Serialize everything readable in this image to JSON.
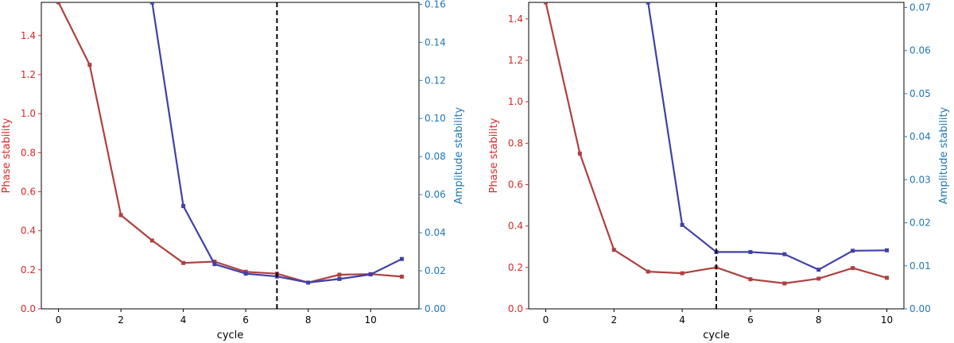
{
  "colors": {
    "phase": "#b04040",
    "amplitude": "#4040a8",
    "left_axis_text": "#d62728",
    "right_axis_text": "#1f77b4",
    "frame": "#000000",
    "threshold": "#000000"
  },
  "chart_data": [
    {
      "type": "line",
      "xlabel": "cycle",
      "ylabel_left": "Phase stability",
      "ylabel_right": "Amplitude stability",
      "xlim": [
        -0.55,
        11.55
      ],
      "ylim_left": [
        0,
        1.57
      ],
      "ylim_right": [
        0,
        0.161
      ],
      "xticks": [
        "0",
        "2",
        "4",
        "6",
        "8",
        "10"
      ],
      "xtick_values": [
        0,
        2,
        4,
        6,
        8,
        10
      ],
      "yticks_left": [
        "0.0",
        "0.2",
        "0.4",
        "0.6",
        "0.8",
        "1.0",
        "1.2",
        "1.4"
      ],
      "ytick_left_values": [
        0,
        0.2,
        0.4,
        0.6,
        0.8,
        1.0,
        1.2,
        1.4
      ],
      "yticks_right": [
        "0.00",
        "0.02",
        "0.04",
        "0.06",
        "0.08",
        "0.10",
        "0.12",
        "0.14",
        "0.16"
      ],
      "ytick_right_values": [
        0,
        0.02,
        0.04,
        0.06,
        0.08,
        0.1,
        0.12,
        0.14,
        0.16
      ],
      "vline_x": 7,
      "grid": false,
      "series": [
        {
          "axis": "left",
          "color": "#b04040",
          "x": [
            0,
            1,
            2,
            3,
            4,
            5,
            6,
            7,
            8,
            9,
            10,
            11
          ],
          "y": [
            1.57,
            1.25,
            0.48,
            0.35,
            0.235,
            0.242,
            0.19,
            0.18,
            0.135,
            0.175,
            0.178,
            0.165
          ],
          "marker_x": [
            0,
            1,
            2,
            3,
            4,
            5,
            6,
            7,
            9,
            10,
            11
          ]
        },
        {
          "axis": "right",
          "color": "#4040a8",
          "x": [
            3,
            4,
            5,
            6,
            7,
            8,
            9,
            10,
            11
          ],
          "y": [
            0.161,
            0.054,
            0.0235,
            0.0185,
            0.017,
            0.0138,
            0.0157,
            0.0181,
            0.0262
          ],
          "marker_x": [
            3,
            4,
            5,
            6,
            7,
            8,
            9,
            10,
            11
          ]
        }
      ]
    },
    {
      "type": "line",
      "xlabel": "cycle",
      "ylabel_left": "Phase stability",
      "ylabel_right": "Amplitude stability",
      "xlim": [
        -0.5,
        10.5
      ],
      "ylim_left": [
        0,
        1.48
      ],
      "ylim_right": [
        0,
        0.0712
      ],
      "xticks": [
        "0",
        "2",
        "4",
        "6",
        "8",
        "10"
      ],
      "xtick_values": [
        0,
        2,
        4,
        6,
        8,
        10
      ],
      "yticks_left": [
        "0.0",
        "0.2",
        "0.4",
        "0.6",
        "0.8",
        "1.0",
        "1.2",
        "1.4"
      ],
      "ytick_left_values": [
        0,
        0.2,
        0.4,
        0.6,
        0.8,
        1.0,
        1.2,
        1.4
      ],
      "yticks_right": [
        "0.00",
        "0.01",
        "0.02",
        "0.03",
        "0.04",
        "0.05",
        "0.06",
        "0.07"
      ],
      "ytick_right_values": [
        0,
        0.01,
        0.02,
        0.03,
        0.04,
        0.05,
        0.06,
        0.07
      ],
      "vline_x": 5,
      "grid": false,
      "series": [
        {
          "axis": "left",
          "color": "#b04040",
          "x": [
            0,
            1,
            2,
            3,
            4,
            5,
            6,
            7,
            8,
            9,
            10
          ],
          "y": [
            1.48,
            0.75,
            0.285,
            0.18,
            0.172,
            0.2,
            0.143,
            0.123,
            0.146,
            0.197,
            0.15
          ],
          "marker_x": [
            0,
            1,
            2,
            3,
            4,
            5,
            6,
            7,
            8,
            9,
            10
          ]
        },
        {
          "axis": "right",
          "color": "#4040a8",
          "x": [
            3,
            4,
            5,
            6,
            7,
            8,
            9,
            10
          ],
          "y": [
            0.0712,
            0.0195,
            0.0132,
            0.0132,
            0.0127,
            0.0091,
            0.0135,
            0.0136
          ],
          "marker_x": [
            3,
            4,
            5,
            6,
            7,
            8,
            9,
            10
          ]
        }
      ]
    }
  ]
}
